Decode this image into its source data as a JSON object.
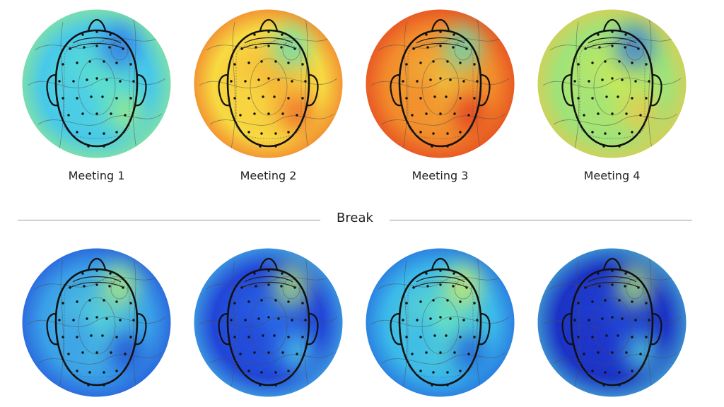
{
  "maps": [
    {
      "id": "m1",
      "label": "Meeting 1",
      "palette": [
        "#63e6c8",
        "#48c9ea",
        "#a3ef7c"
      ],
      "hot": "#2f6ee6"
    },
    {
      "id": "m2",
      "label": "Meeting 2",
      "palette": [
        "#f6b338",
        "#f7da42",
        "#ef5d25"
      ],
      "hot": "#59e0c2"
    },
    {
      "id": "m3",
      "label": "Meeting 3",
      "palette": [
        "#f0c33f",
        "#f28a2c",
        "#e0321c"
      ],
      "hot": "#59e0c2"
    },
    {
      "id": "m4",
      "label": "Meeting 4",
      "palette": [
        "#cdeb58",
        "#9fe37a",
        "#f3c444"
      ],
      "hot": "#2f6ee6"
    },
    {
      "id": "a1",
      "label": "",
      "palette": [
        "#5ad6d8",
        "#3a9fe8",
        "#1f43d6"
      ],
      "hot": "#b6ee75"
    },
    {
      "id": "a2",
      "label": "",
      "palette": [
        "#2d6ee8",
        "#2246d8",
        "#4dd0e6"
      ],
      "hot": "#b6ee75"
    },
    {
      "id": "a3",
      "label": "",
      "palette": [
        "#6ee6c0",
        "#3bb8ea",
        "#1f55d9"
      ],
      "hot": "#d9ee5e"
    },
    {
      "id": "a4",
      "label": "",
      "palette": [
        "#2448d8",
        "#1c33c6",
        "#53d6d6"
      ],
      "hot": "#b6ee75"
    }
  ],
  "divider": {
    "label": "Break"
  }
}
